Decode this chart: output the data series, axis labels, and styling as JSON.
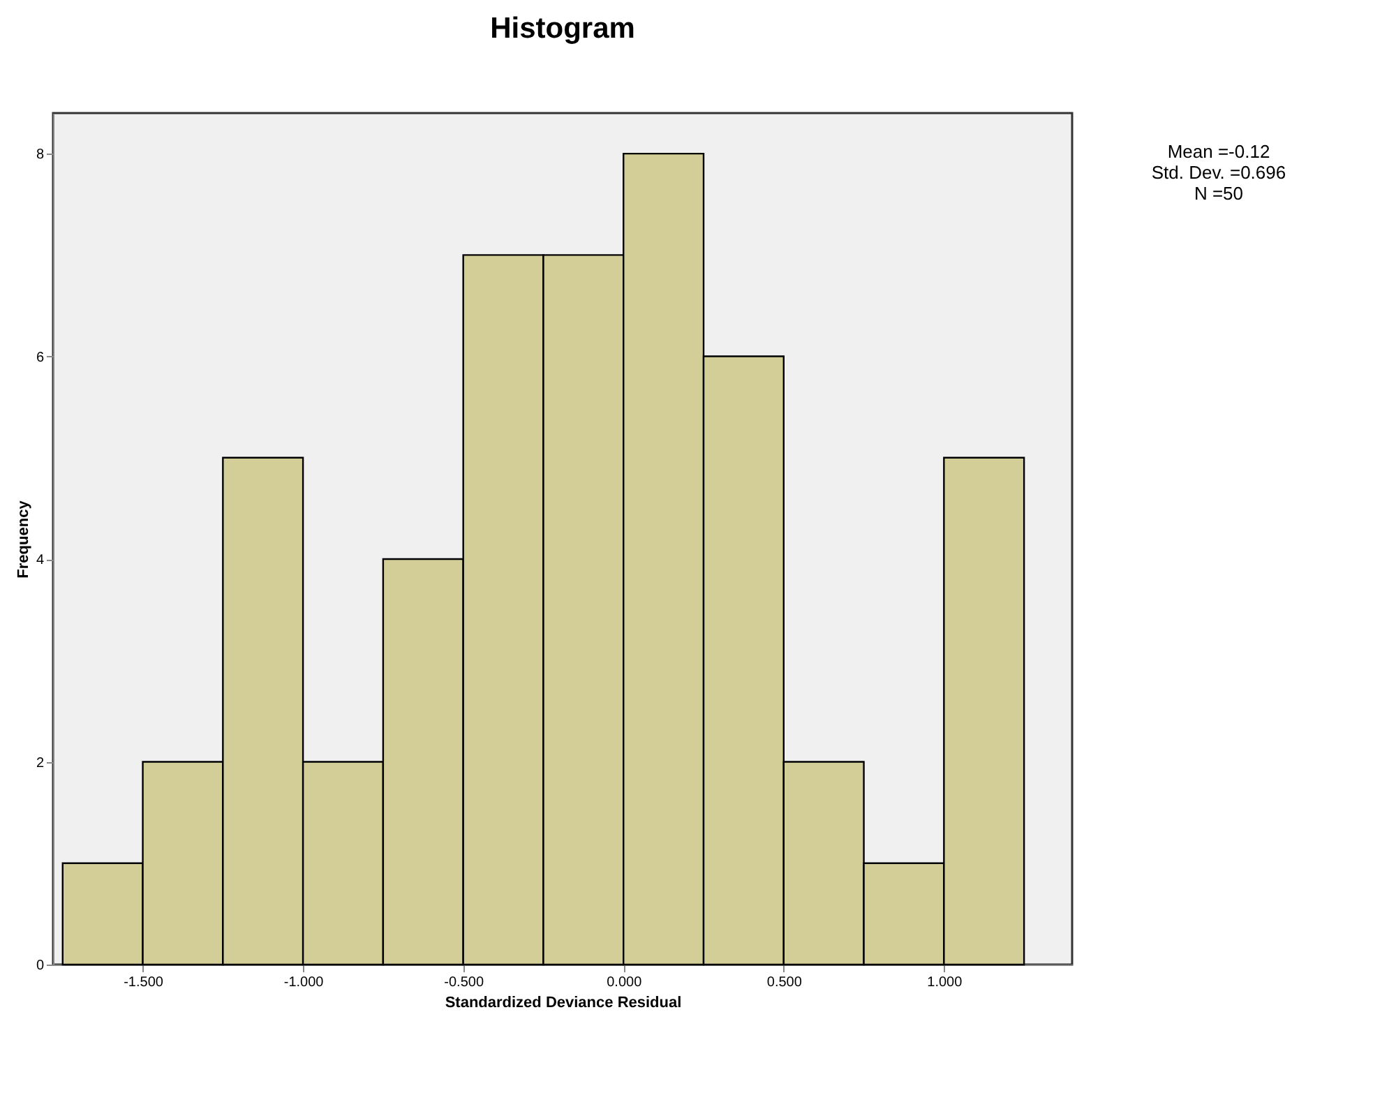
{
  "chart_data": {
    "type": "histogram",
    "title": "Histogram",
    "xlabel": "Standardized Deviance Residual",
    "ylabel": "Frequency",
    "bins": [
      -1.75,
      -1.5,
      -1.25,
      -1.0,
      -0.75,
      -0.5,
      -0.25,
      0.0,
      0.25,
      0.5,
      0.75,
      1.0,
      1.25
    ],
    "values": [
      1,
      2,
      5,
      2,
      4,
      7,
      7,
      8,
      6,
      2,
      1,
      5
    ],
    "color": "#d3ce97",
    "xlim": [
      -1.78,
      1.4
    ],
    "xticks": [
      {
        "value": -1.5,
        "label": "-1.500"
      },
      {
        "value": -1.0,
        "label": "-1.000"
      },
      {
        "value": -0.5,
        "label": "-0.500"
      },
      {
        "value": 0.0,
        "label": "0.000"
      },
      {
        "value": 0.5,
        "label": "0.500"
      },
      {
        "value": 1.0,
        "label": "1.000"
      }
    ],
    "ylim": [
      0,
      8.4
    ],
    "yticks": [
      0,
      2,
      4,
      6,
      8
    ],
    "grid": false,
    "annotations": [
      "Mean =-0.12",
      "Std. Dev. =0.696",
      "N =50"
    ]
  }
}
